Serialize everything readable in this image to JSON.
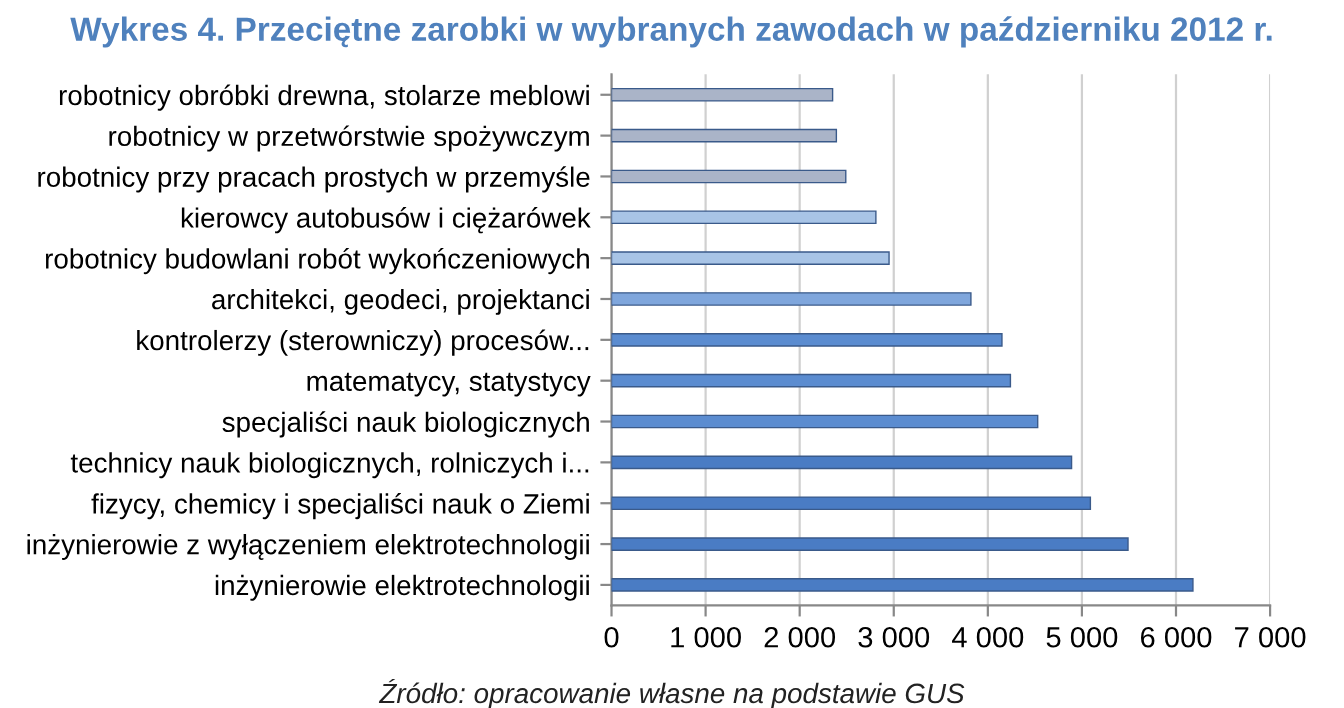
{
  "chart_data": {
    "type": "bar",
    "orientation": "horizontal",
    "title": "Wykres 4. Przeciętne zarobki w wybranych zawodach w październiku 2012 r.",
    "categories": [
      "robotnicy obróbki drewna, stolarze meblowi",
      "robotnicy w przetwórstwie spożywczym",
      "robotnicy przy pracach prostych w przemyśle",
      "kierowcy autobusów i ciężarówek",
      "robotnicy budowlani robót wykończeniowych",
      "architekci, geodeci, projektanci",
      "kontrolerzy (sterowniczy) procesów...",
      "matematycy, statystycy",
      "specjaliści nauk biologicznych",
      "technicy nauk biologicznych, rolniczych i...",
      "fizycy, chemicy i specjaliści nauk o Ziemi",
      "inżynierowie z wyłączeniem elektrotechnologii",
      "inżynierowie elektrotechnologii"
    ],
    "values": [
      2350,
      2390,
      2490,
      2810,
      2950,
      3820,
      4150,
      4240,
      4530,
      4890,
      5090,
      5490,
      6180
    ],
    "colors": [
      "#aab4c8",
      "#aab4c8",
      "#aab4c8",
      "#a8c4e6",
      "#a8c4e6",
      "#7fa6dc",
      "#5b8cd0",
      "#5b8cd0",
      "#5b8cd0",
      "#4a7cc4",
      "#4a7cc4",
      "#4a7cc4",
      "#4a7cc4"
    ],
    "xlim": [
      0,
      7000
    ],
    "xticks": [
      {
        "value": 0,
        "label": "0"
      },
      {
        "value": 1000,
        "label": "1 000"
      },
      {
        "value": 2000,
        "label": "2 000"
      },
      {
        "value": 3000,
        "label": "3 000"
      },
      {
        "value": 4000,
        "label": "4 000"
      },
      {
        "value": 5000,
        "label": "5 000"
      },
      {
        "value": 6000,
        "label": "6 000"
      },
      {
        "value": 7000,
        "label": "7 000"
      }
    ],
    "grid": "x",
    "annotations": [
      "Źródło: opracowanie własne na podstawie GUS"
    ]
  }
}
